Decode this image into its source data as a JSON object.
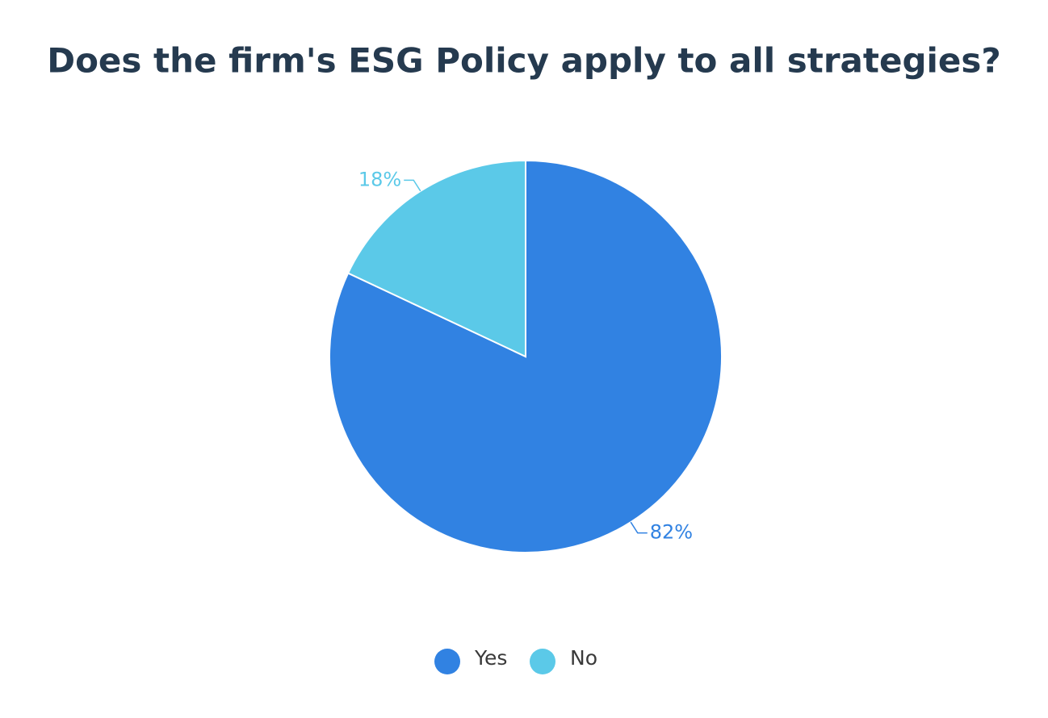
{
  "chart_data": {
    "type": "pie",
    "title": "Does the firm's ESG Policy apply to all strategies?",
    "categories": [
      "Yes",
      "No"
    ],
    "values": [
      82,
      18
    ],
    "value_labels": [
      "82%",
      "18%"
    ],
    "colors": [
      "#3182e2",
      "#5bc9e8"
    ],
    "legend": "bottom"
  }
}
